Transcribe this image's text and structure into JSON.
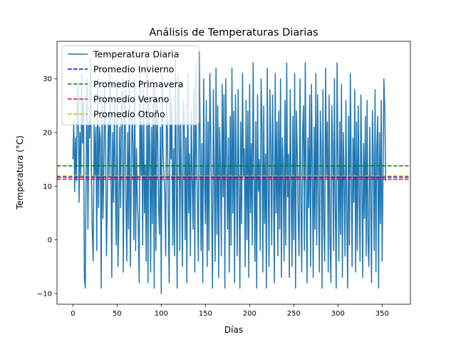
{
  "chart_data": {
    "type": "line",
    "title": "Análisis de Temperaturas Diarias",
    "xlabel": "Días",
    "ylabel": "Temperatura (°C)",
    "xlim": [
      -18,
      382
    ],
    "ylim": [
      -12,
      37
    ],
    "x_ticks": [
      0,
      50,
      100,
      150,
      200,
      250,
      300,
      350
    ],
    "y_ticks": [
      -10,
      0,
      10,
      20,
      30
    ],
    "grid": false,
    "legend_position": "upper-left",
    "series": [
      {
        "name": "Temperatura Diaria",
        "kind": "line",
        "color": "#1f77b4",
        "x_start": 0,
        "x_step": 1,
        "values": [
          15,
          22,
          9,
          19,
          11,
          25,
          29,
          7,
          20,
          12,
          31,
          18,
          26,
          -7,
          -9,
          14,
          30,
          2,
          22,
          19,
          34,
          11,
          1,
          -4,
          22,
          12,
          21,
          -2,
          30,
          6,
          21,
          19,
          -9,
          27,
          4,
          13,
          29,
          18,
          -3,
          8,
          22,
          12,
          31,
          15,
          -7,
          20,
          7,
          26,
          11,
          -1,
          29,
          -5,
          4,
          21,
          6,
          25,
          30,
          -6,
          16,
          28,
          8,
          -4,
          20,
          2,
          32,
          -5,
          10,
          24,
          18,
          0,
          30,
          -2,
          17,
          7,
          3,
          -8,
          31,
          12,
          22,
          -1,
          28,
          5,
          14,
          -4,
          34,
          -8,
          26,
          17,
          -6,
          21,
          3,
          30,
          -9,
          29,
          -2,
          26,
          19,
          6,
          1,
          21,
          -10,
          31,
          17,
          12,
          9,
          -3,
          26,
          20,
          4,
          -8,
          30,
          15,
          25,
          -1,
          17,
          -3,
          34,
          12,
          -9,
          31,
          28,
          -2,
          22,
          11,
          -5,
          26,
          22,
          0,
          19,
          -8,
          31,
          5,
          16,
          -3,
          24,
          11,
          2,
          28,
          -6,
          33,
          15,
          7,
          -4,
          35,
          20,
          -2,
          18,
          -8,
          30,
          11,
          3,
          26,
          -5,
          22,
          -2,
          31,
          19,
          6,
          -9,
          28,
          12,
          -4,
          32,
          1,
          25,
          -7,
          21,
          14,
          -3,
          29,
          8,
          27,
          -9,
          30,
          16,
          2,
          19,
          -6,
          23,
          -1,
          32,
          5,
          24,
          -8,
          27,
          14,
          -3,
          28,
          10,
          -9,
          22,
          3,
          31,
          12,
          17,
          -5,
          26,
          0,
          24,
          -7,
          29,
          5,
          18,
          -1,
          33,
          13,
          -4,
          22,
          -9,
          27,
          9,
          15,
          -2,
          30,
          21,
          -6,
          25,
          3,
          16,
          -9,
          32,
          10,
          -5,
          28,
          17,
          -1,
          27,
          12,
          -8,
          31,
          5,
          22,
          -3,
          24,
          2,
          30,
          -7,
          19,
          14,
          -4,
          26,
          -1,
          33,
          8,
          16,
          -7,
          28,
          11,
          -5,
          23,
          0,
          31,
          -9,
          24,
          16,
          4,
          -3,
          30,
          8,
          -6,
          20,
          25,
          -2,
          33,
          11,
          -8,
          19,
          6,
          27,
          -5,
          29,
          14,
          -7,
          21,
          2,
          31,
          -1,
          27,
          9,
          -6,
          24,
          17,
          -9,
          28,
          3,
          -4,
          32,
          12,
          22,
          -6,
          27,
          0,
          -8,
          25,
          18,
          -2,
          30,
          6,
          -9,
          33,
          15,
          -4,
          22,
          1,
          29,
          -7,
          20,
          11,
          -3,
          26,
          5,
          -9,
          23,
          -1,
          31,
          14,
          -5,
          19,
          7,
          28,
          -6,
          22,
          -2,
          25,
          9,
          -4,
          27,
          12,
          -7,
          18,
          4,
          23,
          -3,
          26,
          0,
          -5,
          21,
          8,
          -8,
          24,
          15,
          -2,
          28,
          -6,
          17,
          23,
          -9,
          20,
          3,
          26,
          -4,
          12,
          30,
          24,
          11
        ]
      },
      {
        "name": "Promedio Invierno",
        "kind": "hline",
        "style": "dashed",
        "color": "#0000ff",
        "value": 11.7
      },
      {
        "name": "Promedio Primavera",
        "kind": "hline",
        "style": "dashed",
        "color": "#008000",
        "value": 13.8
      },
      {
        "name": "Promedio Verano",
        "kind": "hline",
        "style": "dashed",
        "color": "#ff0000",
        "value": 11.3
      },
      {
        "name": "Promedio Otoño",
        "kind": "hline",
        "style": "dashed",
        "color": "#bfbf00",
        "value": 11.9
      }
    ]
  }
}
